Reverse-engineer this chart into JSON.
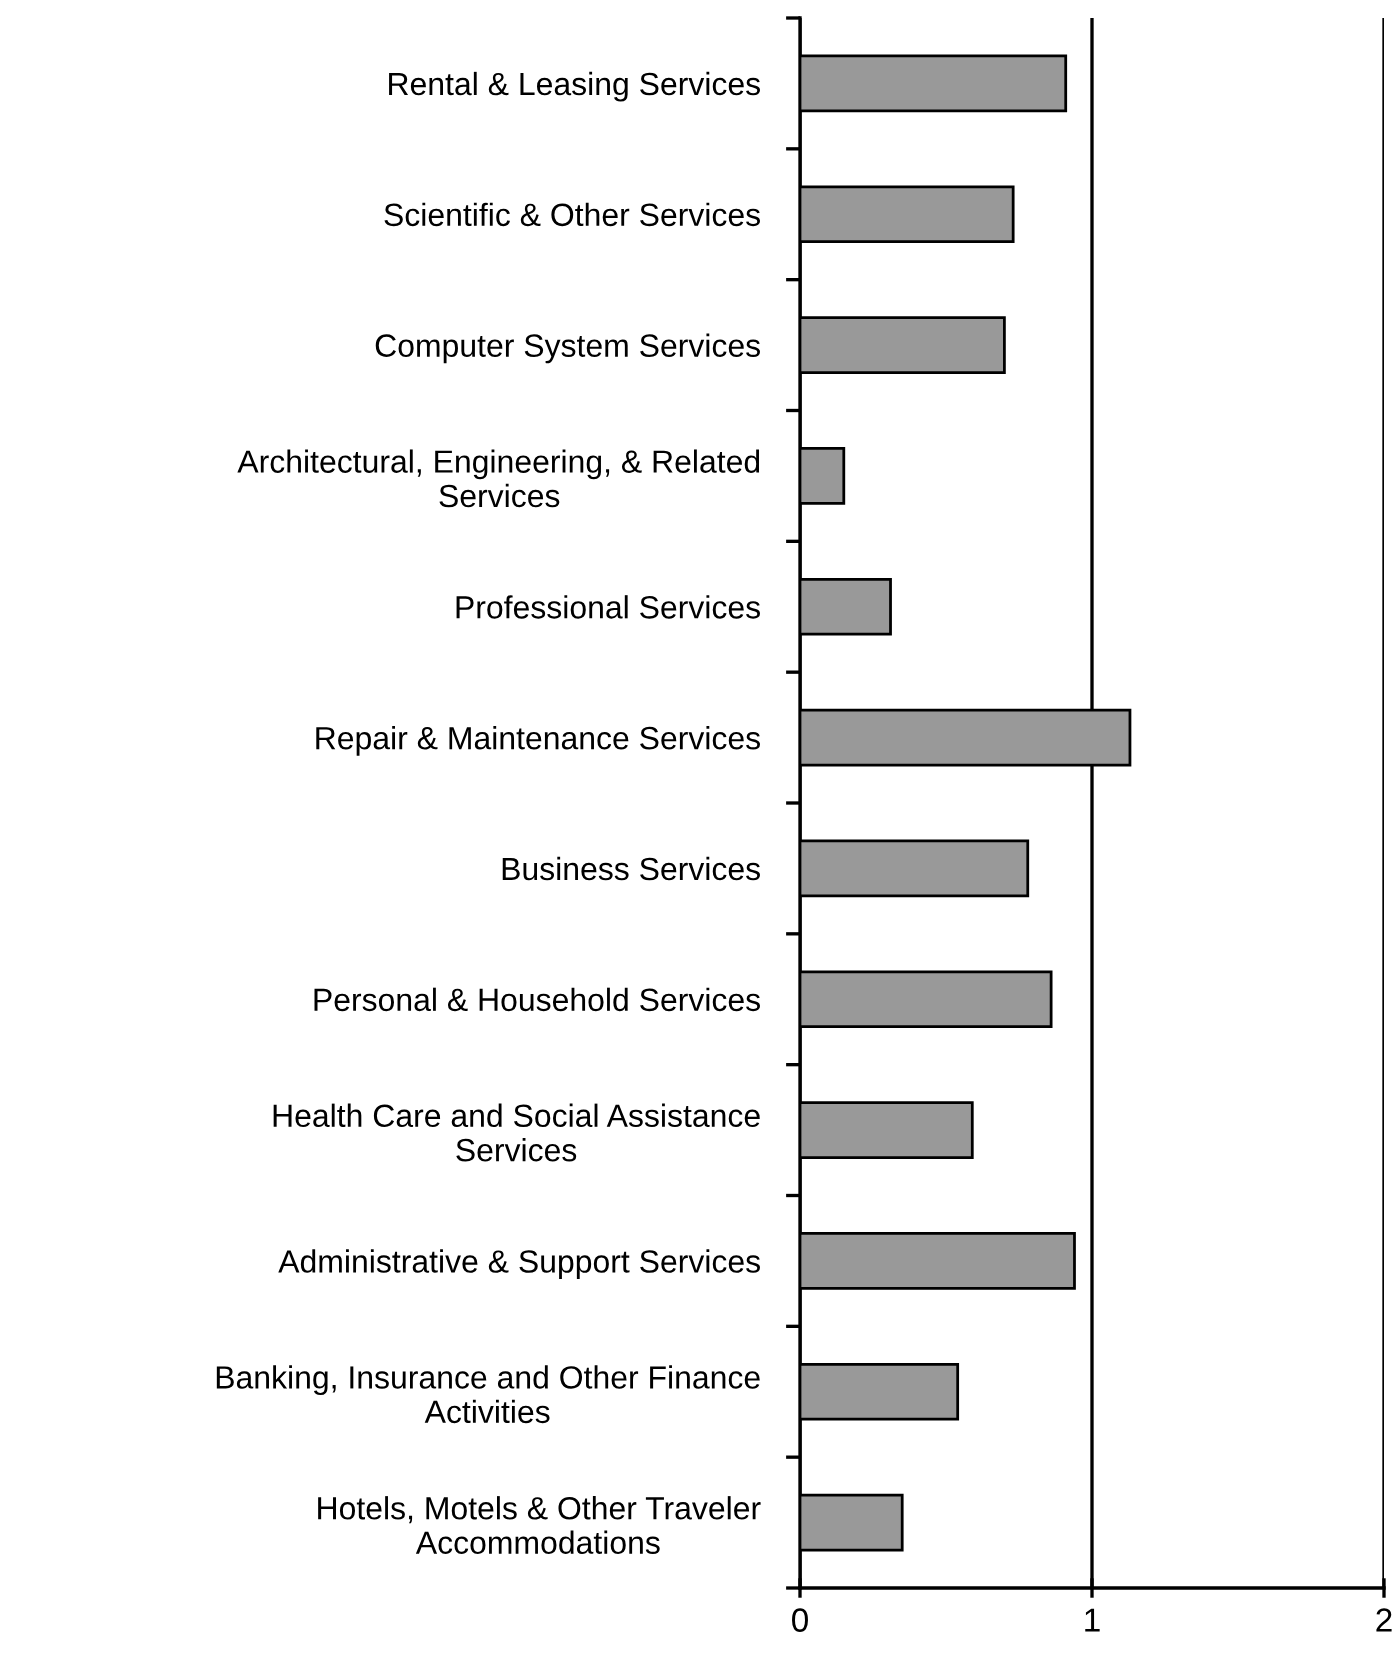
{
  "chart_data": {
    "type": "bar",
    "orientation": "horizontal",
    "categories": [
      "Rental & Leasing Services",
      "Scientific & Other Services",
      "Computer System Services",
      "Architectural, Engineering, & Related\nServices",
      "Professional Services",
      "Repair & Maintenance Services",
      "Business Services",
      "Personal & Household Services",
      "Health Care and Social Assistance\nServices",
      "Administrative & Support Services",
      "Banking, Insurance and Other Finance\nActivities",
      "Hotels, Motels & Other Traveler\nAccommodations"
    ],
    "values": [
      0.91,
      0.73,
      0.7,
      0.15,
      0.31,
      1.13,
      0.78,
      0.86,
      0.59,
      0.94,
      0.54,
      0.35
    ],
    "color": "#999999",
    "xlim": [
      0,
      2
    ],
    "xticks": [
      0,
      1,
      2
    ],
    "grid": "x",
    "legend": false
  }
}
